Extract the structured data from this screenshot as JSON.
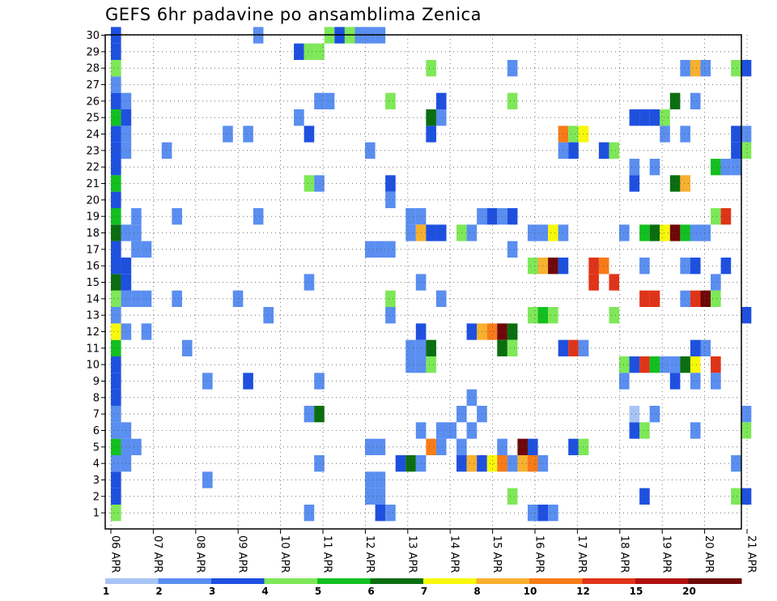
{
  "chart_data": {
    "type": "heatmap",
    "title": "GEFS 6hr padavine po ansamblima Zenica",
    "xlabel": "",
    "ylabel": "",
    "y_ticks": [
      "1",
      "2",
      "3",
      "4",
      "5",
      "6",
      "7",
      "8",
      "9",
      "10",
      "11",
      "12",
      "13",
      "14",
      "15",
      "16",
      "17",
      "18",
      "19",
      "20",
      "21",
      "22",
      "23",
      "24",
      "25",
      "26",
      "27",
      "28",
      "29",
      "30"
    ],
    "x_ticks": [
      "06 APR",
      "07 APR",
      "08 APR",
      "09 APR",
      "10 APR",
      "11 APR",
      "12 APR",
      "13 APR",
      "14 APR",
      "15 APR",
      "16 APR",
      "17 APR",
      "18 APR",
      "19 APR",
      "20 APR",
      "21 APR"
    ],
    "x_unit": "6-hour step from 06 APR 00Z",
    "ylim": [
      0.5,
      30.5
    ],
    "grid": true,
    "colorbar": {
      "labels": [
        "1",
        "2",
        "3",
        "4",
        "5",
        "6",
        "7",
        "8",
        "10",
        "12",
        "15",
        "20"
      ],
      "colors": [
        "#a8c4f5",
        "#5a8ef0",
        "#1e50e0",
        "#7ee858",
        "#12c020",
        "#0a6e10",
        "#f8f80a",
        "#f8b030",
        "#f87b18",
        "#e03418",
        "#b01010",
        "#6e0808"
      ]
    },
    "cells": [
      [
        0,
        1,
        3
      ],
      [
        0,
        2,
        2
      ],
      [
        0,
        3,
        2
      ],
      [
        0,
        4,
        1
      ],
      [
        0,
        5,
        4
      ],
      [
        0,
        6,
        1
      ],
      [
        0,
        7,
        1
      ],
      [
        0,
        8,
        2
      ],
      [
        0,
        9,
        2
      ],
      [
        0,
        10,
        2
      ],
      [
        0,
        11,
        4
      ],
      [
        0,
        12,
        6
      ],
      [
        0,
        13,
        1
      ],
      [
        0,
        14,
        3
      ],
      [
        0,
        15,
        5
      ],
      [
        0,
        16,
        2
      ],
      [
        0,
        17,
        2
      ],
      [
        0,
        18,
        5
      ],
      [
        0,
        19,
        4
      ],
      [
        0,
        20,
        2
      ],
      [
        0,
        21,
        4
      ],
      [
        0,
        22,
        2
      ],
      [
        0,
        23,
        2
      ],
      [
        0,
        24,
        2
      ],
      [
        0,
        25,
        4
      ],
      [
        0,
        26,
        2
      ],
      [
        0,
        27,
        1
      ],
      [
        0,
        28,
        3
      ],
      [
        0,
        29,
        2
      ],
      [
        0,
        30,
        2
      ],
      [
        1,
        4,
        1
      ],
      [
        1,
        5,
        1
      ],
      [
        1,
        6,
        1
      ],
      [
        1,
        12,
        1
      ],
      [
        1,
        14,
        1
      ],
      [
        1,
        15,
        2
      ],
      [
        1,
        16,
        2
      ],
      [
        1,
        18,
        1
      ],
      [
        1,
        23,
        1
      ],
      [
        1,
        24,
        1
      ],
      [
        1,
        25,
        2
      ],
      [
        1,
        26,
        1
      ],
      [
        2,
        5,
        1
      ],
      [
        2,
        14,
        1
      ],
      [
        2,
        17,
        1
      ],
      [
        2,
        18,
        1
      ],
      [
        2,
        19,
        1
      ],
      [
        3,
        12,
        1
      ],
      [
        3,
        14,
        1
      ],
      [
        3,
        17,
        1
      ],
      [
        5,
        23,
        1
      ],
      [
        6,
        14,
        1
      ],
      [
        6,
        19,
        1
      ],
      [
        7,
        11,
        1
      ],
      [
        9,
        3,
        1
      ],
      [
        9,
        9,
        1
      ],
      [
        11,
        24,
        1
      ],
      [
        12,
        14,
        1
      ],
      [
        13,
        9,
        2
      ],
      [
        13,
        24,
        1
      ],
      [
        14,
        30,
        1
      ],
      [
        14,
        19,
        1
      ],
      [
        15,
        13,
        1
      ],
      [
        18,
        29,
        2
      ],
      [
        18,
        25,
        1
      ],
      [
        19,
        29,
        3
      ],
      [
        19,
        24,
        2
      ],
      [
        19,
        21,
        3
      ],
      [
        19,
        15,
        1
      ],
      [
        19,
        7,
        1
      ],
      [
        19,
        1,
        1
      ],
      [
        20,
        29,
        3
      ],
      [
        20,
        26,
        1
      ],
      [
        20,
        21,
        1
      ],
      [
        20,
        9,
        1
      ],
      [
        20,
        7,
        5
      ],
      [
        20,
        4,
        1
      ],
      [
        21,
        30,
        3
      ],
      [
        21,
        26,
        1
      ],
      [
        22,
        30,
        2
      ],
      [
        23,
        30,
        3
      ],
      [
        24,
        30,
        1
      ],
      [
        25,
        30,
        1
      ],
      [
        25,
        17,
        1
      ],
      [
        25,
        23,
        1
      ],
      [
        25,
        5,
        1
      ],
      [
        25,
        3,
        1
      ],
      [
        25,
        2,
        1
      ],
      [
        26,
        30,
        1
      ],
      [
        26,
        17,
        1
      ],
      [
        26,
        5,
        1
      ],
      [
        26,
        3,
        1
      ],
      [
        26,
        2,
        1
      ],
      [
        26,
        1,
        2
      ],
      [
        27,
        26,
        3
      ],
      [
        27,
        21,
        2
      ],
      [
        27,
        20,
        1
      ],
      [
        27,
        17,
        1
      ],
      [
        27,
        14,
        3
      ],
      [
        27,
        13,
        1
      ],
      [
        27,
        1,
        1
      ],
      [
        28,
        4,
        2
      ],
      [
        29,
        19,
        1
      ],
      [
        29,
        18,
        1
      ],
      [
        29,
        11,
        1
      ],
      [
        29,
        10,
        1
      ],
      [
        29,
        4,
        5
      ],
      [
        30,
        19,
        1
      ],
      [
        30,
        18,
        7
      ],
      [
        30,
        15,
        1
      ],
      [
        30,
        12,
        2
      ],
      [
        30,
        11,
        1
      ],
      [
        30,
        10,
        1
      ],
      [
        30,
        6,
        1
      ],
      [
        30,
        4,
        1
      ],
      [
        31,
        28,
        3
      ],
      [
        31,
        25,
        5
      ],
      [
        31,
        24,
        2
      ],
      [
        31,
        18,
        2
      ],
      [
        31,
        11,
        5
      ],
      [
        31,
        10,
        3
      ],
      [
        31,
        5,
        8
      ],
      [
        32,
        26,
        2
      ],
      [
        32,
        25,
        1
      ],
      [
        32,
        18,
        2
      ],
      [
        32,
        14,
        1
      ],
      [
        32,
        14,
        1
      ],
      [
        32,
        6,
        1
      ],
      [
        32,
        5,
        1
      ],
      [
        33,
        6,
        1
      ],
      [
        34,
        18,
        3
      ],
      [
        34,
        7,
        1
      ],
      [
        34,
        5,
        1
      ],
      [
        34,
        4,
        2
      ],
      [
        35,
        18,
        1
      ],
      [
        35,
        12,
        2
      ],
      [
        35,
        8,
        1
      ],
      [
        35,
        6,
        1
      ],
      [
        35,
        4,
        7
      ],
      [
        36,
        19,
        1
      ],
      [
        36,
        12,
        7
      ],
      [
        36,
        7,
        1
      ],
      [
        36,
        4,
        2
      ],
      [
        37,
        19,
        2
      ],
      [
        37,
        12,
        8
      ],
      [
        37,
        4,
        6
      ],
      [
        38,
        19,
        1
      ],
      [
        38,
        12,
        11
      ],
      [
        38,
        11,
        5
      ],
      [
        38,
        5,
        1
      ],
      [
        38,
        4,
        8
      ],
      [
        39,
        28,
        1
      ],
      [
        39,
        19,
        2
      ],
      [
        39,
        17,
        1
      ],
      [
        39,
        26,
        3
      ],
      [
        39,
        12,
        5
      ],
      [
        39,
        11,
        3
      ],
      [
        39,
        4,
        1
      ],
      [
        39,
        2,
        3
      ],
      [
        40,
        5,
        11
      ],
      [
        40,
        4,
        7
      ],
      [
        41,
        18,
        1
      ],
      [
        41,
        16,
        3
      ],
      [
        41,
        13,
        3
      ],
      [
        41,
        5,
        2
      ],
      [
        41,
        4,
        8
      ],
      [
        41,
        1,
        1
      ],
      [
        42,
        18,
        1
      ],
      [
        42,
        16,
        7
      ],
      [
        42,
        13,
        4
      ],
      [
        42,
        4,
        1
      ],
      [
        42,
        1,
        2
      ],
      [
        43,
        18,
        6
      ],
      [
        43,
        16,
        11
      ],
      [
        43,
        13,
        3
      ],
      [
        43,
        1,
        1
      ],
      [
        44,
        18,
        1
      ],
      [
        44,
        16,
        2
      ],
      [
        44,
        23,
        1
      ],
      [
        44,
        24,
        8
      ],
      [
        44,
        11,
        2
      ],
      [
        45,
        24,
        3
      ],
      [
        45,
        23,
        2
      ],
      [
        45,
        11,
        9
      ],
      [
        45,
        5,
        2
      ],
      [
        46,
        24,
        6
      ],
      [
        46,
        11,
        1
      ],
      [
        46,
        5,
        3
      ],
      [
        47,
        16,
        9
      ],
      [
        47,
        15,
        9
      ],
      [
        48,
        23,
        2
      ],
      [
        48,
        16,
        8
      ],
      [
        49,
        23,
        3
      ],
      [
        49,
        15,
        9
      ],
      [
        49,
        13,
        3
      ],
      [
        50,
        18,
        1
      ],
      [
        50,
        10,
        3
      ],
      [
        50,
        9,
        1
      ],
      [
        50,
        0,
        1
      ],
      [
        51,
        25,
        2
      ],
      [
        51,
        22,
        1
      ],
      [
        51,
        21,
        2
      ],
      [
        51,
        10,
        2
      ],
      [
        51,
        6,
        2
      ],
      [
        51,
        7,
        0
      ],
      [
        52,
        25,
        2
      ],
      [
        52,
        18,
        4
      ],
      [
        52,
        16,
        1
      ],
      [
        52,
        14,
        9
      ],
      [
        52,
        10,
        9
      ],
      [
        52,
        6,
        3
      ],
      [
        52,
        2,
        2
      ],
      [
        53,
        25,
        2
      ],
      [
        53,
        18,
        5
      ],
      [
        53,
        22,
        1
      ],
      [
        53,
        14,
        9
      ],
      [
        53,
        10,
        4
      ],
      [
        53,
        7,
        1
      ],
      [
        54,
        25,
        3
      ],
      [
        54,
        24,
        1
      ],
      [
        54,
        18,
        6
      ],
      [
        54,
        10,
        1
      ],
      [
        55,
        26,
        5
      ],
      [
        55,
        21,
        5
      ],
      [
        55,
        18,
        11
      ],
      [
        55,
        10,
        1
      ],
      [
        55,
        9,
        2
      ],
      [
        56,
        28,
        1
      ],
      [
        56,
        24,
        1
      ],
      [
        56,
        21,
        7
      ],
      [
        56,
        18,
        4
      ],
      [
        56,
        16,
        1
      ],
      [
        56,
        14,
        1
      ],
      [
        56,
        10,
        5
      ],
      [
        57,
        28,
        7
      ],
      [
        57,
        26,
        1
      ],
      [
        57,
        18,
        1
      ],
      [
        57,
        16,
        2
      ],
      [
        57,
        14,
        9
      ],
      [
        57,
        11,
        2
      ],
      [
        57,
        10,
        6
      ],
      [
        57,
        9,
        1
      ],
      [
        57,
        6,
        1
      ],
      [
        58,
        28,
        1
      ],
      [
        58,
        18,
        1
      ],
      [
        58,
        14,
        11
      ],
      [
        58,
        11,
        1
      ],
      [
        59,
        22,
        4
      ],
      [
        59,
        19,
        3
      ],
      [
        59,
        15,
        1
      ],
      [
        59,
        14,
        3
      ],
      [
        59,
        10,
        9
      ],
      [
        59,
        9,
        1
      ],
      [
        60,
        22,
        1
      ],
      [
        60,
        19,
        9
      ],
      [
        60,
        16,
        2
      ],
      [
        61,
        28,
        3
      ],
      [
        61,
        24,
        2
      ],
      [
        61,
        23,
        2
      ],
      [
        61,
        22,
        1
      ],
      [
        61,
        4,
        1
      ],
      [
        61,
        2,
        3
      ],
      [
        62,
        28,
        2
      ],
      [
        62,
        24,
        1
      ],
      [
        62,
        23,
        3
      ],
      [
        62,
        13,
        2
      ],
      [
        62,
        7,
        1
      ],
      [
        62,
        6,
        3
      ],
      [
        62,
        2,
        2
      ]
    ]
  }
}
